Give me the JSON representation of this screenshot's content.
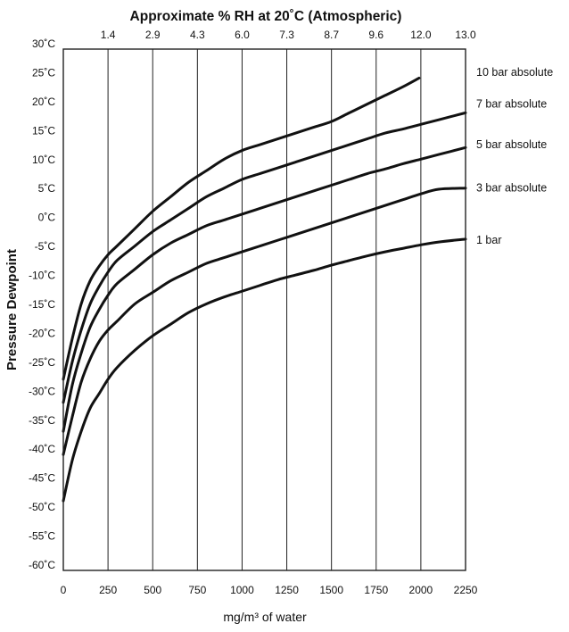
{
  "chart_data": {
    "type": "line",
    "title": "Approximate % RH at 20˚C (Atmospheric)",
    "xlabel": "mg/m³ of water",
    "ylabel": "Pressure Dewpoint",
    "xlim": [
      0,
      2250
    ],
    "ylim": [
      -60,
      30
    ],
    "x_ticks": [
      0,
      250,
      500,
      750,
      1000,
      1250,
      1500,
      1750,
      2000,
      2250
    ],
    "x_tick_labels": [
      "0",
      "250",
      "500",
      "750",
      "1000",
      "1250",
      "1500",
      "1750",
      "2000",
      "2250"
    ],
    "y_ticks": [
      30,
      25,
      20,
      15,
      10,
      5,
      0,
      -5,
      -10,
      -15,
      -20,
      -25,
      -30,
      -35,
      -40,
      -45,
      -50,
      -55,
      -60
    ],
    "y_tick_labels": [
      "30˚C",
      "25˚C",
      "20˚C",
      "15˚C",
      "10˚C",
      "5˚C",
      "0˚C",
      "-5˚C",
      "-10˚C",
      "-15˚C",
      "-20˚C",
      "-25˚C",
      "-30˚C",
      "-35˚C",
      "-40˚C",
      "-45˚C",
      "-50˚C",
      "-55˚C",
      "-60˚C"
    ],
    "top_axis": {
      "ticks": [
        250,
        500,
        750,
        1000,
        1250,
        1500,
        1750,
        2000,
        2250
      ],
      "labels": [
        "1.4",
        "2.9",
        "4.3",
        "6.0",
        "7.3",
        "8.7",
        "9.6",
        "12.0",
        "13.0"
      ]
    },
    "grid": "vertical",
    "series": [
      {
        "name": "10 bar absolute",
        "points": [
          [
            0,
            -27
          ],
          [
            50,
            -20
          ],
          [
            100,
            -14
          ],
          [
            150,
            -10
          ],
          [
            200,
            -7.5
          ],
          [
            250,
            -5.5
          ],
          [
            300,
            -4
          ],
          [
            400,
            -1
          ],
          [
            500,
            2
          ],
          [
            600,
            4.5
          ],
          [
            700,
            7
          ],
          [
            800,
            9
          ],
          [
            900,
            11
          ],
          [
            1000,
            12.5
          ],
          [
            1100,
            13.5
          ],
          [
            1200,
            14.5
          ],
          [
            1300,
            15.5
          ],
          [
            1400,
            16.5
          ],
          [
            1500,
            17.5
          ],
          [
            1600,
            19
          ],
          [
            1700,
            20.5
          ],
          [
            1800,
            22
          ],
          [
            1900,
            23.5
          ],
          [
            1990,
            25
          ]
        ]
      },
      {
        "name": "7 bar absolute",
        "points": [
          [
            0,
            -31
          ],
          [
            50,
            -24
          ],
          [
            100,
            -18.5
          ],
          [
            150,
            -14
          ],
          [
            200,
            -11
          ],
          [
            250,
            -8.5
          ],
          [
            300,
            -6.5
          ],
          [
            400,
            -4
          ],
          [
            500,
            -1.5
          ],
          [
            600,
            0.5
          ],
          [
            700,
            2.5
          ],
          [
            800,
            4.5
          ],
          [
            900,
            6
          ],
          [
            1000,
            7.5
          ],
          [
            1100,
            8.5
          ],
          [
            1200,
            9.5
          ],
          [
            1300,
            10.5
          ],
          [
            1400,
            11.5
          ],
          [
            1500,
            12.5
          ],
          [
            1600,
            13.5
          ],
          [
            1700,
            14.5
          ],
          [
            1800,
            15.5
          ],
          [
            1900,
            16.2
          ],
          [
            2000,
            17
          ],
          [
            2100,
            17.8
          ],
          [
            2250,
            19
          ]
        ]
      },
      {
        "name": "5 bar absolute",
        "points": [
          [
            0,
            -36
          ],
          [
            50,
            -28
          ],
          [
            100,
            -22.5
          ],
          [
            150,
            -18
          ],
          [
            200,
            -15
          ],
          [
            250,
            -12.5
          ],
          [
            300,
            -10.5
          ],
          [
            400,
            -8
          ],
          [
            500,
            -5.5
          ],
          [
            600,
            -3.5
          ],
          [
            700,
            -2
          ],
          [
            800,
            -0.5
          ],
          [
            900,
            0.5
          ],
          [
            1000,
            1.5
          ],
          [
            1100,
            2.5
          ],
          [
            1200,
            3.5
          ],
          [
            1300,
            4.5
          ],
          [
            1400,
            5.5
          ],
          [
            1500,
            6.5
          ],
          [
            1600,
            7.5
          ],
          [
            1700,
            8.5
          ],
          [
            1800,
            9.3
          ],
          [
            1900,
            10.2
          ],
          [
            2000,
            11
          ],
          [
            2100,
            11.8
          ],
          [
            2250,
            13
          ]
        ]
      },
      {
        "name": "3 bar absolute",
        "points": [
          [
            0,
            -40
          ],
          [
            50,
            -33.5
          ],
          [
            100,
            -27.5
          ],
          [
            150,
            -23.5
          ],
          [
            200,
            -20.5
          ],
          [
            250,
            -18.5
          ],
          [
            300,
            -17
          ],
          [
            400,
            -14
          ],
          [
            500,
            -12
          ],
          [
            600,
            -10
          ],
          [
            700,
            -8.5
          ],
          [
            800,
            -7
          ],
          [
            900,
            -6
          ],
          [
            1000,
            -5
          ],
          [
            1100,
            -4
          ],
          [
            1200,
            -3
          ],
          [
            1300,
            -2
          ],
          [
            1400,
            -1
          ],
          [
            1500,
            0
          ],
          [
            1600,
            1
          ],
          [
            1700,
            2
          ],
          [
            1800,
            3
          ],
          [
            1900,
            4
          ],
          [
            2000,
            5
          ],
          [
            2100,
            5.8
          ],
          [
            2250,
            6
          ]
        ]
      },
      {
        "name": "1 bar",
        "points": [
          [
            0,
            -48
          ],
          [
            50,
            -41
          ],
          [
            100,
            -36
          ],
          [
            150,
            -32
          ],
          [
            200,
            -29.5
          ],
          [
            250,
            -27
          ],
          [
            300,
            -25
          ],
          [
            400,
            -22
          ],
          [
            500,
            -19.5
          ],
          [
            600,
            -17.5
          ],
          [
            700,
            -15.5
          ],
          [
            800,
            -14
          ],
          [
            900,
            -12.8
          ],
          [
            1000,
            -11.8
          ],
          [
            1100,
            -10.8
          ],
          [
            1200,
            -9.8
          ],
          [
            1300,
            -9
          ],
          [
            1400,
            -8.2
          ],
          [
            1500,
            -7.3
          ],
          [
            1600,
            -6.5
          ],
          [
            1700,
            -5.7
          ],
          [
            1800,
            -5
          ],
          [
            1900,
            -4.4
          ],
          [
            2000,
            -3.8
          ],
          [
            2100,
            -3.3
          ],
          [
            2250,
            -2.8
          ]
        ]
      }
    ],
    "series_labels": [
      {
        "text": "10 bar absolute",
        "y": 26
      },
      {
        "text": "7 bar absolute",
        "y": 20.5
      },
      {
        "text": "5 bar absolute",
        "y": 13.5
      },
      {
        "text": "3 bar absolute",
        "y": 6
      },
      {
        "text": "1 bar",
        "y": -3
      }
    ]
  }
}
